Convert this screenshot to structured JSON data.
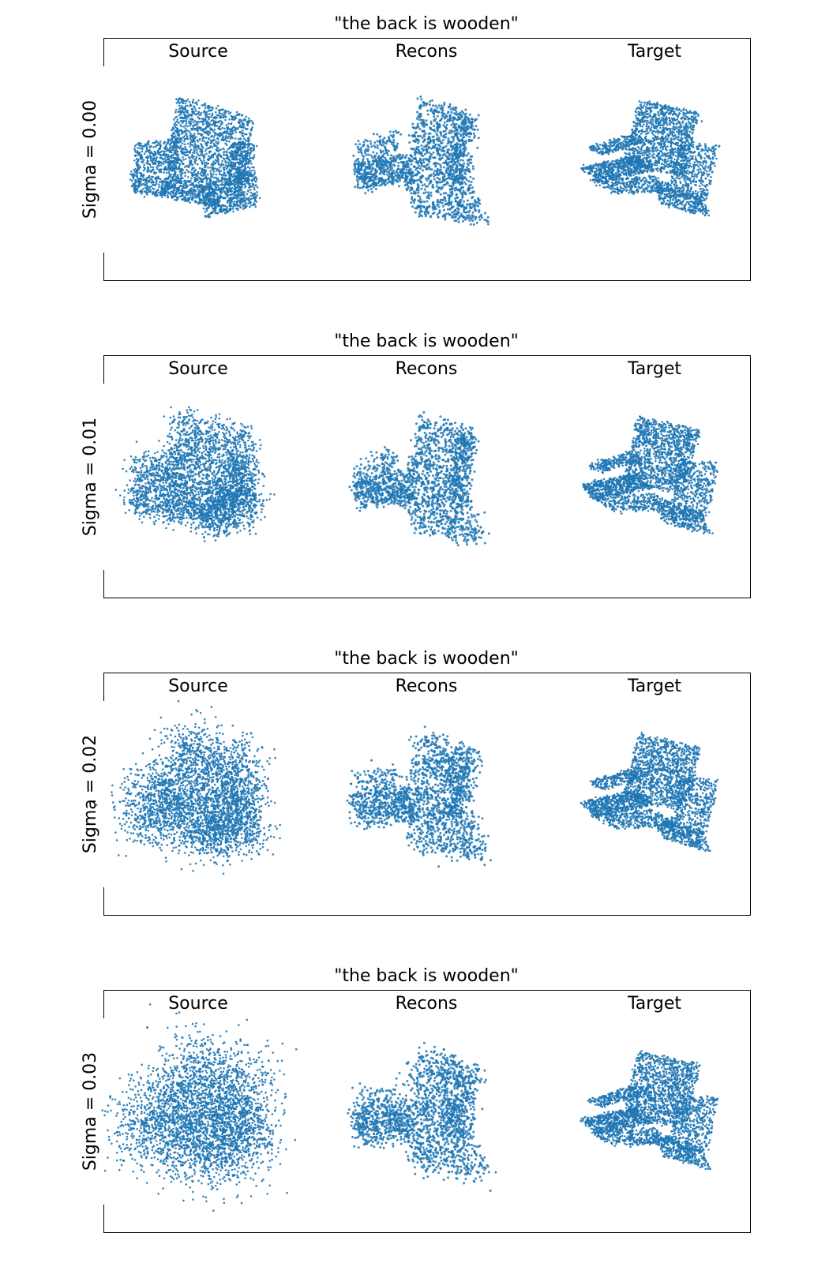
{
  "chart_data": [
    {
      "type": "scatter",
      "title": "\"the back is wooden\"",
      "row_label": "Sigma = 0.00",
      "columns": [
        "Source",
        "Recons",
        "Target"
      ],
      "sigma": 0.0,
      "point_color": "#1f77b4"
    },
    {
      "type": "scatter",
      "title": "\"the back is wooden\"",
      "row_label": "Sigma = 0.01",
      "columns": [
        "Source",
        "Recons",
        "Target"
      ],
      "sigma": 0.01,
      "point_color": "#1f77b4"
    },
    {
      "type": "scatter",
      "title": "\"the back is wooden\"",
      "row_label": "Sigma = 0.02",
      "columns": [
        "Source",
        "Recons",
        "Target"
      ],
      "sigma": 0.02,
      "point_color": "#1f77b4"
    },
    {
      "type": "scatter",
      "title": "\"the back is wooden\"",
      "row_label": "Sigma = 0.03",
      "columns": [
        "Source",
        "Recons",
        "Target"
      ],
      "sigma": 0.03,
      "point_color": "#1f77b4"
    }
  ]
}
